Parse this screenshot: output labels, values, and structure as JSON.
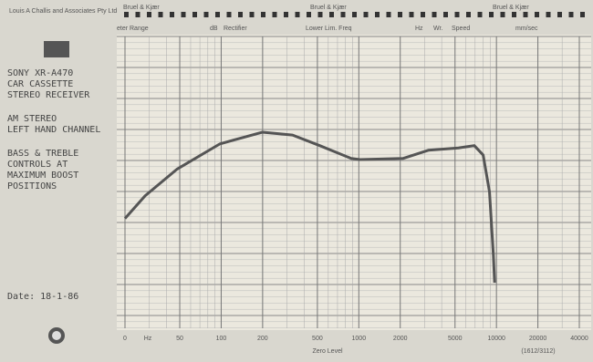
{
  "company": "Louis A Challis and Associates Pty Ltd",
  "brand_labels": [
    "Bruel & Kjær",
    "Bruel & Kjær",
    "Bruel & Kjær"
  ],
  "settings_row": [
    "eter Range",
    "dB",
    "Rectifier",
    "Lower Lim. Freq",
    "Hz",
    "Wr.",
    "Speed",
    "mm/sec"
  ],
  "notes": [
    "SONY XR-A470",
    "CAR CASSETTE",
    "STEREO RECEIVER",
    "AM STEREO",
    "LEFT HAND CHANNEL",
    "BASS & TREBLE",
    "CONTROLS AT",
    "MAXIMUM BOOST",
    "POSITIONS"
  ],
  "date": "Date: 18-1-86",
  "chart_data": {
    "type": "line",
    "log_x": true,
    "x_unit": "Hz",
    "x_label": "Zero Level",
    "reference": "(1612/3112)",
    "xlim": [
      20,
      40000
    ],
    "ylim": [
      0,
      50
    ],
    "xticks": [
      {
        "value": 20,
        "label": "0"
      },
      50,
      100,
      200,
      500,
      1000,
      2000,
      5000,
      10000,
      20000,
      40000
    ],
    "x": [
      20,
      28,
      48,
      98,
      200,
      330,
      520,
      880,
      1020,
      2090,
      3200,
      5300,
      6900,
      8000,
      8900,
      9500,
      9700
    ],
    "series": [
      {
        "color": "#555555",
        "values": [
          18.8,
          22.7,
          27.3,
          31.6,
          33.6,
          33.1,
          31.3,
          29.1,
          28.9,
          29.1,
          30.5,
          30.9,
          31.3,
          29.7,
          23.4,
          12.5,
          7.8
        ]
      }
    ]
  }
}
